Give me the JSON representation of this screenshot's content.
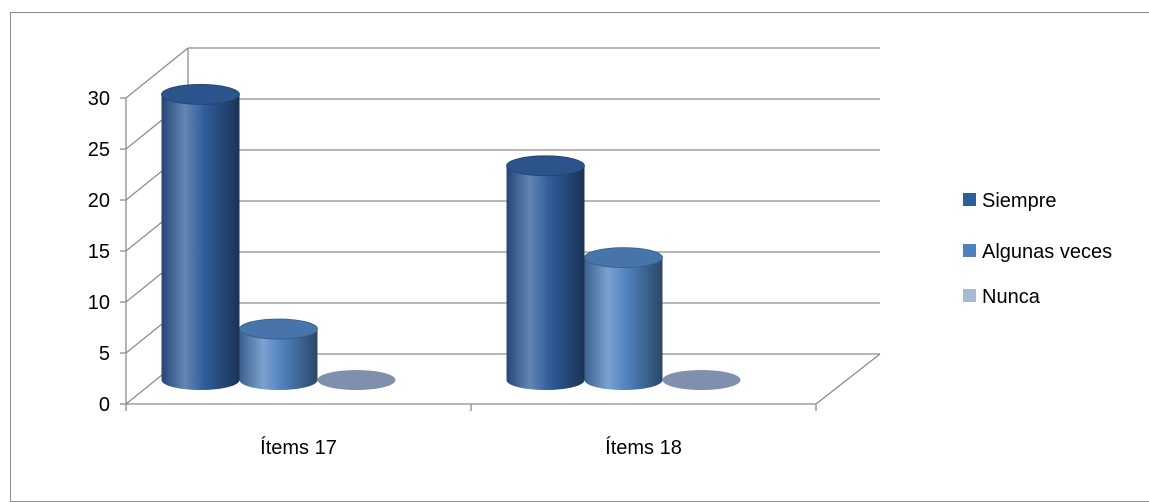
{
  "chart_data": {
    "type": "bar",
    "categories": [
      "Ítems 17",
      "Ítems 18"
    ],
    "series": [
      {
        "name": "Siempre",
        "values": [
          28,
          21
        ],
        "color": "#2f5d9a"
      },
      {
        "name": "Algunas veces",
        "values": [
          5,
          12
        ],
        "color": "#4f81bd"
      },
      {
        "name": "Nunca",
        "values": [
          0,
          0
        ],
        "color": "#a9b8d4"
      }
    ],
    "yticks": [
      "0",
      "5",
      "10",
      "15",
      "20",
      "25",
      "30"
    ],
    "ylim": [
      0,
      30
    ],
    "grid": true,
    "style": "3d-cylinder",
    "legend_position": "right"
  }
}
